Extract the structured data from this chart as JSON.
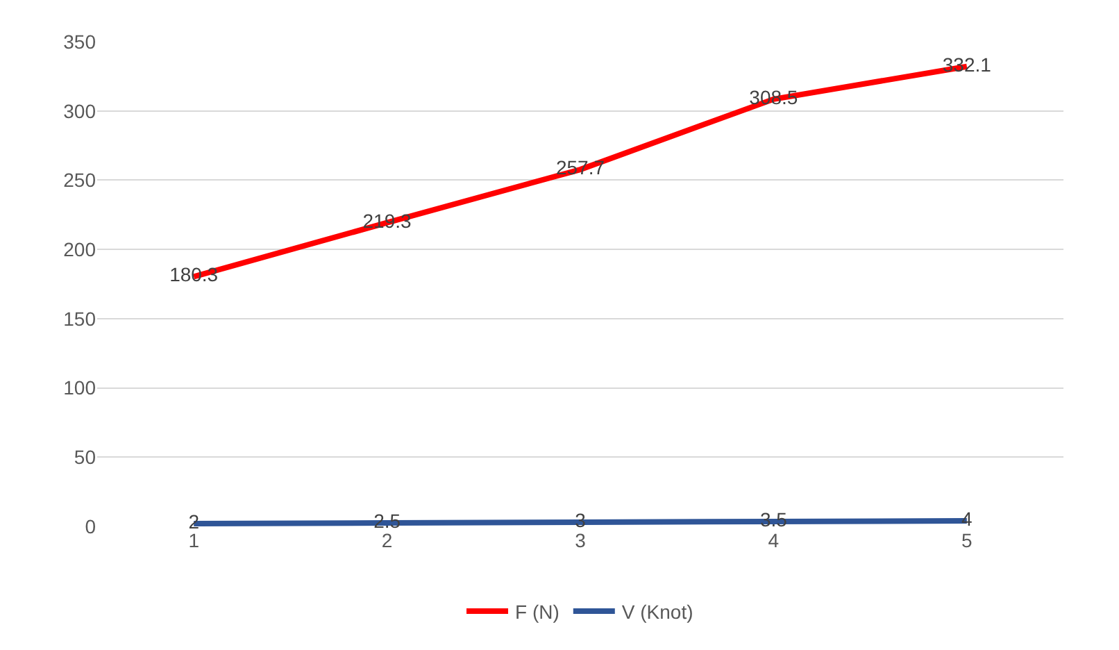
{
  "chart_data": {
    "type": "line",
    "categories": [
      "1",
      "2",
      "3",
      "4",
      "5"
    ],
    "series": [
      {
        "name": "F (N)",
        "color": "#ff0000",
        "values": [
          180.3,
          219.3,
          257.7,
          308.5,
          332.1
        ]
      },
      {
        "name": "V (Knot)",
        "color": "#2f5597",
        "values": [
          2,
          2.5,
          3,
          3.5,
          4
        ]
      }
    ],
    "ylim": [
      0,
      350
    ],
    "yticks": [
      0,
      50,
      100,
      150,
      200,
      250,
      300,
      350
    ],
    "grid": "y",
    "legend": "bottom",
    "data_labels": true,
    "marker": "none",
    "line_style": "solid"
  }
}
